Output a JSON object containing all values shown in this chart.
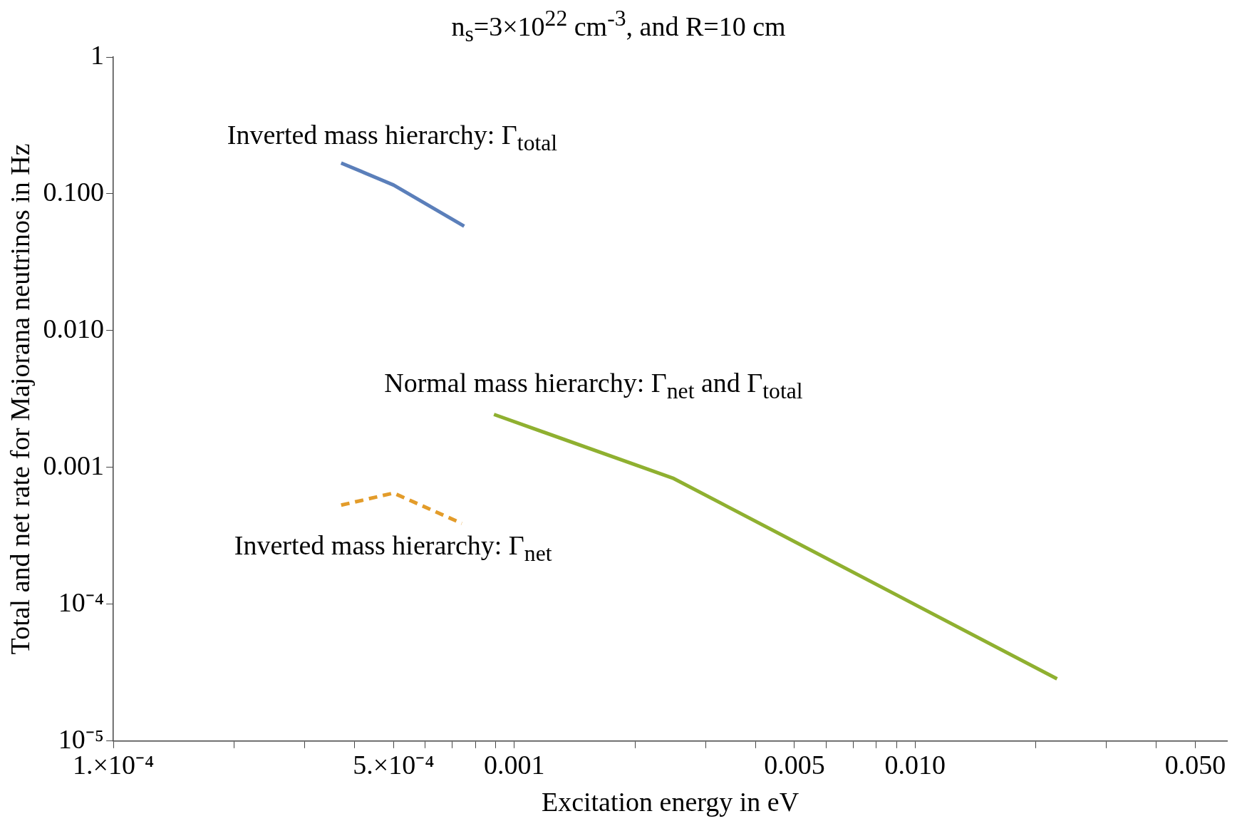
{
  "chart_data": {
    "type": "line",
    "title": "n$_{s}$=3×10$^{22}$ cm$^{-3}$, and R=10 cm",
    "xlabel": "Excitation energy in eV",
    "ylabel": "Total and net rate for Majorana neutrinos in Hz",
    "log": "xy",
    "grid": false,
    "legend": false,
    "marker": "none",
    "xlim": [
      0.0001,
      0.06
    ],
    "xticks": [
      {
        "value": 0.0001,
        "label": "1.×10⁻⁴"
      },
      {
        "value": 0.0002,
        "label": null
      },
      {
        "value": 0.0003,
        "label": null
      },
      {
        "value": 0.0004,
        "label": null
      },
      {
        "value": 0.0005,
        "label": "5.×10⁻⁴"
      },
      {
        "value": 0.0006,
        "label": null
      },
      {
        "value": 0.0007,
        "label": null
      },
      {
        "value": 0.0008,
        "label": null
      },
      {
        "value": 0.0009,
        "label": null
      },
      {
        "value": 0.001,
        "label": "0.001"
      },
      {
        "value": 0.002,
        "label": null
      },
      {
        "value": 0.003,
        "label": null
      },
      {
        "value": 0.004,
        "label": null
      },
      {
        "value": 0.005,
        "label": "0.005"
      },
      {
        "value": 0.006,
        "label": null
      },
      {
        "value": 0.007,
        "label": null
      },
      {
        "value": 0.008,
        "label": null
      },
      {
        "value": 0.009,
        "label": null
      },
      {
        "value": 0.01,
        "label": "0.010"
      },
      {
        "value": 0.02,
        "label": null
      },
      {
        "value": 0.03,
        "label": null
      },
      {
        "value": 0.04,
        "label": null
      },
      {
        "value": 0.05,
        "label": "0.050"
      }
    ],
    "ylim": [
      1e-05,
      1
    ],
    "yticks": [
      {
        "value": 1e-05,
        "label": "10⁻⁵"
      },
      {
        "value": 0.0001,
        "label": "10⁻⁴"
      },
      {
        "value": 0.001,
        "label": "0.001"
      },
      {
        "value": 0.01,
        "label": "0.010"
      },
      {
        "value": 0.1,
        "label": "0.100"
      },
      {
        "value": 1,
        "label": "1"
      }
    ],
    "series": [
      {
        "color": "#5b7fba",
        "line_style": "solid",
        "x": [
          0.00037,
          0.0005,
          0.00075
        ],
        "values": [
          0.168,
          0.116,
          0.058
        ]
      },
      {
        "color": "#8fb030",
        "line_style": "solid",
        "x": [
          0.00089,
          0.0025,
          0.0226
        ],
        "values": [
          0.00244,
          0.00083,
          2.85e-05
        ]
      },
      {
        "color": "#e39c2a",
        "line_style": "dashed",
        "x": [
          0.00037,
          0.0005,
          0.00074
        ],
        "values": [
          0.00053,
          0.00065,
          0.00039
        ]
      }
    ],
    "annotations": [
      "Inverted mass hierarchy: Γ$_{total}$",
      "Normal mass hierarchy: Γ$_{net}$ and Γ$_{total}$",
      "Inverted mass hierarchy: Γ$_{net}$"
    ]
  }
}
